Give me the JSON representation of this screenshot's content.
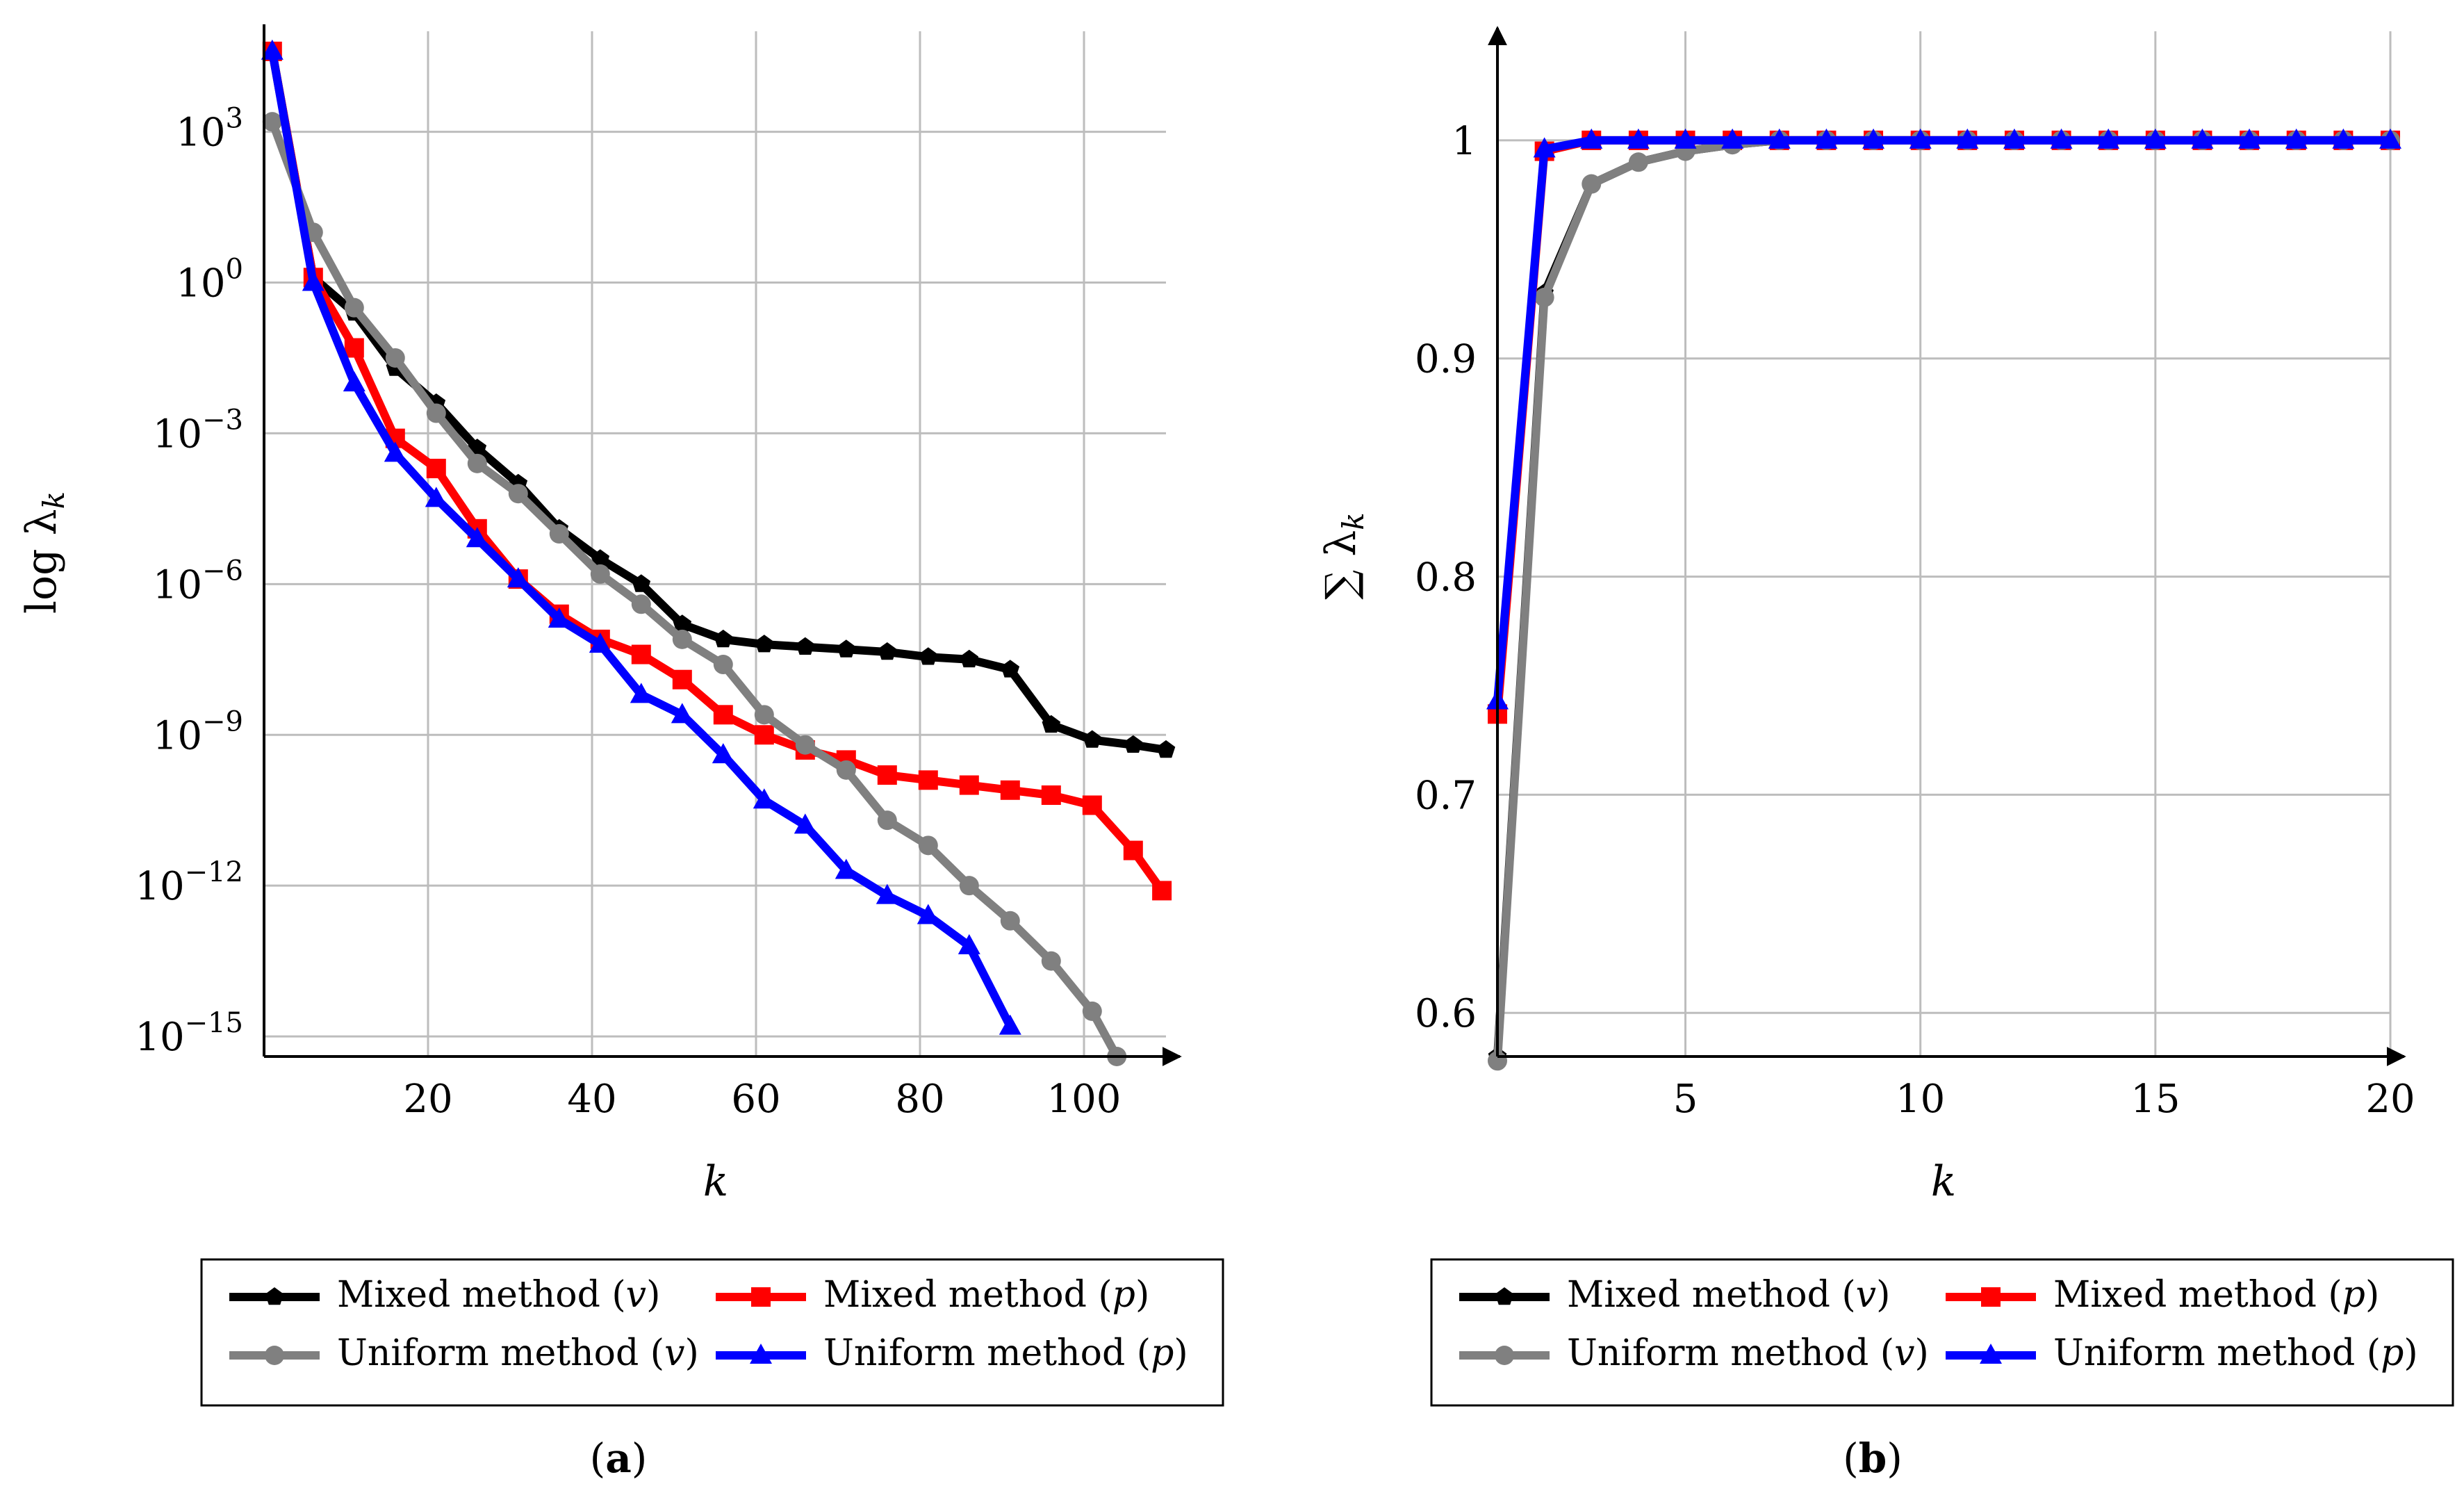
{
  "chart_data": [
    {
      "id": "a",
      "type": "line",
      "caption_letter": "a",
      "ylabel_main": "log λ",
      "ylabel_sub": "k",
      "xlabel": "k",
      "yscale": "log",
      "xlim": [
        0,
        110
      ],
      "ylim_exp": [
        -15.4,
        5
      ],
      "xticks": [
        "20",
        "40",
        "60",
        "80",
        "100"
      ],
      "xtick_values": [
        20,
        40,
        60,
        80,
        100
      ],
      "ytick_exponents": [
        "3",
        "0",
        "−3",
        "−6",
        "−9",
        "−12",
        "−15"
      ],
      "ytick_values": [
        3,
        0,
        -3,
        -6,
        -9,
        -12,
        -15
      ],
      "ytick_base": "10",
      "series": [
        {
          "name": "Mixed method (v)",
          "color": "#000000",
          "marker": "pentagon",
          "x": [
            1,
            6,
            11,
            16,
            21,
            26,
            31,
            36,
            41,
            46,
            51,
            56,
            61,
            66,
            71,
            76,
            81,
            86,
            91,
            96,
            101,
            106,
            110
          ],
          "log10": [
            4.6,
            0.1,
            -0.6,
            -1.7,
            -2.4,
            -3.3,
            -4.0,
            -4.9,
            -5.5,
            -6.0,
            -6.8,
            -7.1,
            -7.2,
            -7.25,
            -7.3,
            -7.35,
            -7.45,
            -7.5,
            -7.7,
            -8.8,
            -9.1,
            -9.2,
            -9.3
          ]
        },
        {
          "name": "Mixed method (p)",
          "color": "#ff0000",
          "marker": "square",
          "x": [
            1,
            6,
            11,
            16,
            21,
            26,
            31,
            36,
            41,
            46,
            51,
            56,
            61,
            66,
            71,
            76,
            81,
            86,
            91,
            96,
            101,
            106,
            109.5
          ],
          "log10": [
            4.6,
            0.1,
            -1.3,
            -3.1,
            -3.7,
            -4.9,
            -5.9,
            -6.6,
            -7.1,
            -7.4,
            -7.9,
            -8.6,
            -9.0,
            -9.3,
            -9.5,
            -9.8,
            -9.9,
            -10.0,
            -10.1,
            -10.2,
            -10.4,
            -11.3,
            -12.1
          ]
        },
        {
          "name": "Uniform method (v)",
          "color": "#808080",
          "marker": "circle",
          "x": [
            1,
            6,
            11,
            16,
            21,
            26,
            31,
            36,
            41,
            46,
            51,
            56,
            61,
            66,
            71,
            76,
            81,
            86,
            91,
            96,
            101,
            104
          ],
          "log10": [
            3.2,
            1.0,
            -0.5,
            -1.5,
            -2.6,
            -3.6,
            -4.2,
            -5.0,
            -5.8,
            -6.4,
            -7.1,
            -7.6,
            -8.6,
            -9.2,
            -9.7,
            -10.7,
            -11.2,
            -12.0,
            -12.7,
            -13.5,
            -14.5,
            -15.4
          ]
        },
        {
          "name": "Uniform method (p)",
          "color": "#0000ff",
          "marker": "triangle",
          "x": [
            1,
            6,
            11,
            16,
            21,
            26,
            31,
            36,
            41,
            46,
            51,
            56,
            61,
            66,
            71,
            76,
            81,
            86,
            91
          ],
          "log10": [
            4.6,
            0.0,
            -2.0,
            -3.4,
            -4.3,
            -5.1,
            -5.9,
            -6.7,
            -7.2,
            -8.2,
            -8.6,
            -9.4,
            -10.3,
            -10.8,
            -11.7,
            -12.2,
            -12.6,
            -13.2,
            -14.8
          ]
        }
      ]
    },
    {
      "id": "b",
      "type": "line",
      "caption_letter": "b",
      "ylabel_main": "∑ λ",
      "ylabel_sub": "k",
      "xlabel": "k",
      "xlim": [
        1,
        20
      ],
      "ylim": [
        0.58,
        1.05
      ],
      "xticks": [
        "5",
        "10",
        "15",
        "20"
      ],
      "xtick_values": [
        5,
        10,
        15,
        20
      ],
      "yticks": [
        "0.6",
        "0.7",
        "0.8",
        "0.9",
        "1"
      ],
      "ytick_values": [
        0.6,
        0.7,
        0.8,
        0.9,
        1.0
      ],
      "series": [
        {
          "name": "Mixed method (v)",
          "color": "#000000",
          "marker": "pentagon",
          "x": [
            1,
            2,
            3,
            4,
            5,
            6,
            7,
            8,
            9,
            10,
            11,
            12,
            13,
            14,
            15,
            16,
            17,
            18,
            19,
            20
          ],
          "y": [
            0.58,
            0.93,
            0.98,
            0.99,
            0.995,
            0.998,
            1,
            1,
            1,
            1,
            1,
            1,
            1,
            1,
            1,
            1,
            1,
            1,
            1,
            1
          ]
        },
        {
          "name": "Mixed method (p)",
          "color": "#ff0000",
          "marker": "square",
          "x": [
            1,
            2,
            3,
            4,
            5,
            6,
            7,
            8,
            9,
            10,
            11,
            12,
            13,
            14,
            15,
            16,
            17,
            18,
            19,
            20
          ],
          "y": [
            0.737,
            0.995,
            1,
            1,
            1,
            1,
            1,
            1,
            1,
            1,
            1,
            1,
            1,
            1,
            1,
            1,
            1,
            1,
            1,
            1
          ]
        },
        {
          "name": "Uniform method (v)",
          "color": "#808080",
          "marker": "circle",
          "x": [
            1,
            2,
            3,
            4,
            5,
            6,
            7,
            8,
            9,
            10,
            11,
            12,
            13,
            14,
            15,
            16,
            17,
            18,
            19,
            20
          ],
          "y": [
            0.578,
            0.928,
            0.98,
            0.99,
            0.995,
            0.998,
            1,
            1,
            1,
            1,
            1,
            1,
            1,
            1,
            1,
            1,
            1,
            1,
            1,
            1
          ]
        },
        {
          "name": "Uniform method (p)",
          "color": "#0000ff",
          "marker": "triangle",
          "x": [
            1,
            2,
            3,
            4,
            5,
            6,
            7,
            8,
            9,
            10,
            11,
            12,
            13,
            14,
            15,
            16,
            17,
            18,
            19,
            20
          ],
          "y": [
            0.743,
            0.996,
            1,
            1,
            1,
            1,
            1,
            1,
            1,
            1,
            1,
            1,
            1,
            1,
            1,
            1,
            1,
            1,
            1,
            1
          ]
        }
      ]
    }
  ],
  "legend": {
    "entries": [
      {
        "label": "Mixed method",
        "var": "v",
        "color": "#000000",
        "marker": "pentagon"
      },
      {
        "label": "Mixed method",
        "var": "p",
        "color": "#ff0000",
        "marker": "square"
      },
      {
        "label": "Uniform method",
        "var": "v",
        "color": "#808080",
        "marker": "circle"
      },
      {
        "label": "Uniform method",
        "var": "p",
        "color": "#0000ff",
        "marker": "triangle"
      }
    ]
  }
}
